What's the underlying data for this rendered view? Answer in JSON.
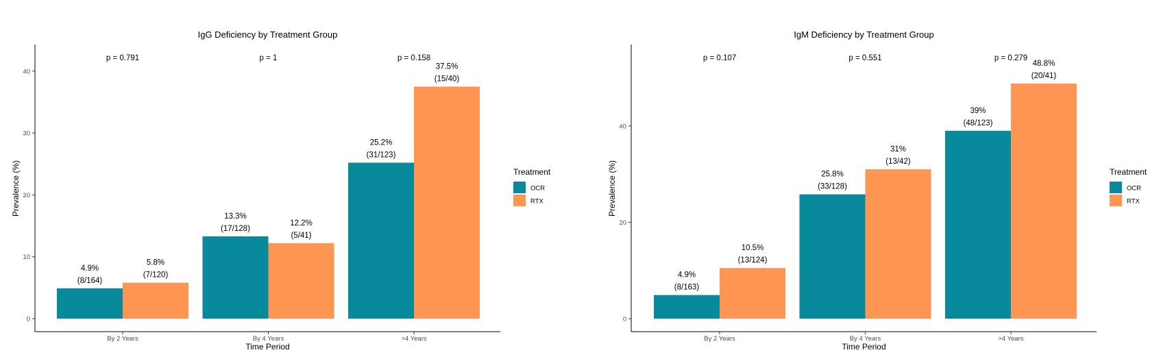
{
  "chart_data": [
    {
      "type": "bar",
      "title": "IgG Deficiency by Treatment Group",
      "xlabel": "Time Period",
      "ylabel": "Prevalence (%)",
      "ylim": [
        0,
        44.3
      ],
      "yticks": [
        0,
        10,
        20,
        30,
        40
      ],
      "grid": false,
      "legend_title": "Treatment",
      "legend_position": "right",
      "categories": [
        "By 2 Years",
        "By 4 Years",
        ">4 Years"
      ],
      "series": [
        {
          "name": "OCR",
          "color": "#088a9c",
          "values": [
            4.9,
            13.3,
            25.2
          ],
          "labels": [
            [
              "4.9%",
              "(8/164)"
            ],
            [
              "13.3%",
              "(17/128)"
            ],
            [
              "25.2%",
              "(31/123)"
            ]
          ]
        },
        {
          "name": "RTX",
          "color": "#ff9552",
          "values": [
            5.8,
            12.2,
            37.5
          ],
          "labels": [
            [
              "5.8%",
              "(7/120)"
            ],
            [
              "12.2%",
              "(5/41)"
            ],
            [
              "37.5%",
              "(15/40)"
            ]
          ]
        }
      ],
      "pvalues": [
        "p = 0.791",
        "p = 1",
        "p = 0.158"
      ]
    },
    {
      "type": "bar",
      "title": "IgM Deficiency by Treatment Group",
      "xlabel": "Time Period",
      "ylabel": "Prevalence (%)",
      "ylim": [
        0,
        56.9
      ],
      "yticks": [
        0,
        20,
        40
      ],
      "grid": false,
      "legend_title": "Treatment",
      "legend_position": "right",
      "categories": [
        "By 2 Years",
        "By 4 Years",
        ">4 Years"
      ],
      "series": [
        {
          "name": "OCR",
          "color": "#088a9c",
          "values": [
            4.9,
            25.8,
            39.0
          ],
          "labels": [
            [
              "4.9%",
              "(8/163)"
            ],
            [
              "25.8%",
              "(33/128)"
            ],
            [
              "39%",
              "(48/123)"
            ]
          ]
        },
        {
          "name": "RTX",
          "color": "#ff9552",
          "values": [
            10.5,
            31.0,
            48.8
          ],
          "labels": [
            [
              "10.5%",
              "(13/124)"
            ],
            [
              "31%",
              "(13/42)"
            ],
            [
              "48.8%",
              "(20/41)"
            ]
          ]
        }
      ],
      "pvalues": [
        "p = 0.107",
        "p = 0.551",
        "p = 0.279"
      ]
    }
  ]
}
